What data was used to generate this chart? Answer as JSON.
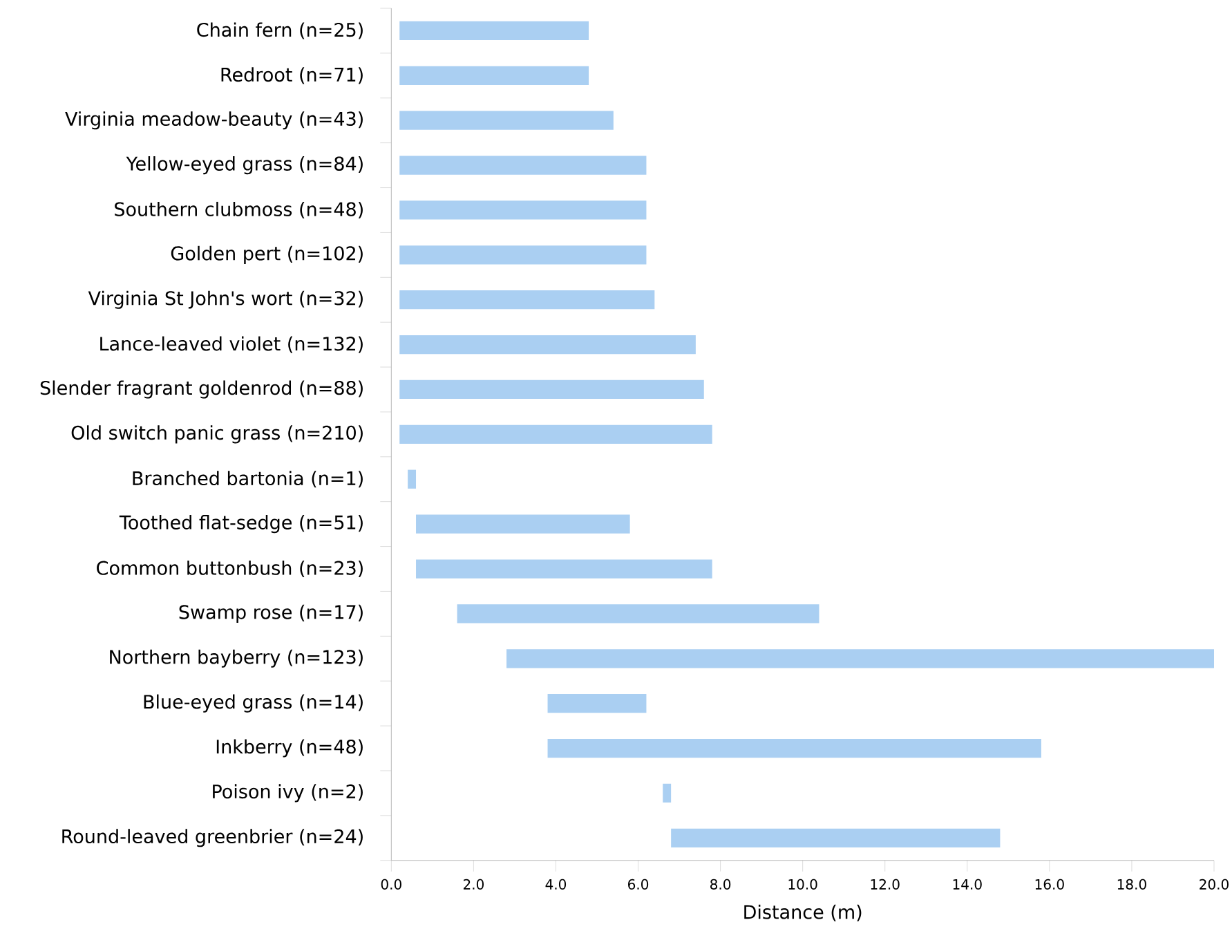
{
  "chart_data": {
    "type": "bar",
    "orientation": "horizontal",
    "xlabel": "Distance (m)",
    "categories": [
      "Chain fern (n=25)",
      "Redroot (n=71)",
      "Virginia meadow-beauty (n=43)",
      "Yellow-eyed grass (n=84)",
      "Southern clubmoss (n=48)",
      "Golden pert (n=102)",
      "Virginia St John's wort (n=32)",
      "Lance-leaved violet (n=132)",
      "Slender fragrant goldenrod (n=88)",
      "Old switch panic grass (n=210)",
      "Branched bartonia (n=1)",
      "Toothed flat-sedge (n=51)",
      "Common buttonbush (n=23)",
      "Swamp rose (n=17)",
      "Northern bayberry (n=123)",
      "Blue-eyed grass (n=14)",
      "Inkberry (n=48)",
      "Poison ivy (n=2)",
      "Round-leaved greenbrier (n=24)"
    ],
    "base": [
      0.2,
      0.2,
      0.2,
      0.2,
      0.2,
      0.2,
      0.2,
      0.2,
      0.2,
      0.2,
      0.4,
      0.6,
      0.6,
      1.6,
      2.8,
      3.8,
      3.8,
      6.6,
      6.8
    ],
    "values": [
      4.6,
      4.6,
      5.2,
      6.0,
      6.0,
      6.0,
      6.2,
      7.2,
      7.4,
      7.6,
      0.2,
      5.2,
      7.2,
      8.8,
      17.2,
      2.4,
      12.0,
      0.2,
      8.0
    ],
    "color": "#aacff2",
    "xlim": [
      0,
      20
    ],
    "xticks": [
      {
        "value": 0,
        "label": "0.0"
      },
      {
        "value": 2,
        "label": "2.0"
      },
      {
        "value": 4,
        "label": "4.0"
      },
      {
        "value": 6,
        "label": "6.0"
      },
      {
        "value": 8,
        "label": "8.0"
      },
      {
        "value": 10,
        "label": "10.0"
      },
      {
        "value": 12,
        "label": "12.0"
      },
      {
        "value": 14,
        "label": "14.0"
      },
      {
        "value": 16,
        "label": "16.0"
      },
      {
        "value": 18,
        "label": "18.0"
      },
      {
        "value": 20,
        "label": "20.0"
      }
    ]
  }
}
